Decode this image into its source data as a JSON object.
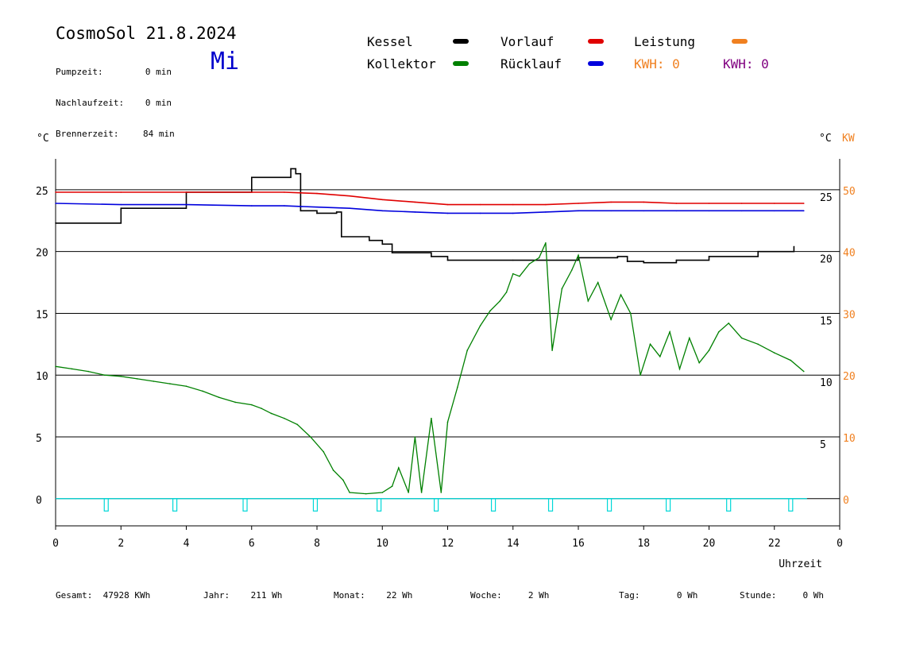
{
  "header": {
    "title": "CosmoSol 21.8.2024",
    "day": "Mi",
    "info": [
      {
        "label": "Pumpzeit:",
        "value": "0 min"
      },
      {
        "label": "Nachlaufzeit:",
        "value": "0 min"
      },
      {
        "label": "Brennerzeit:",
        "value": "84 min"
      }
    ]
  },
  "legend": {
    "kessel": {
      "label": "Kessel",
      "color": "#000000"
    },
    "kollektor": {
      "label": "Kollektor",
      "color": "#008000"
    },
    "vorlauf": {
      "label": "Vorlauf",
      "color": "#e00000"
    },
    "ruecklauf": {
      "label": "Rücklauf",
      "color": "#0000dd"
    },
    "leistung": {
      "label": "Leistung",
      "color": "#f08020"
    },
    "kwh_orange": "KWH: 0",
    "kwh_purple": "KWH: 0",
    "kwh_orange_color": "#f08020",
    "kwh_purple_color": "#800080"
  },
  "footer": [
    {
      "label": "Gesamt:",
      "value": "47928 KWh"
    },
    {
      "label": "Jahr:",
      "value": "211 Wh"
    },
    {
      "label": "Monat:",
      "value": "22 Wh"
    },
    {
      "label": "Woche:",
      "value": "2 Wh"
    },
    {
      "label": "Tag:",
      "value": "0 Wh"
    },
    {
      "label": "Stunde:",
      "value": "0 Wh"
    }
  ],
  "chart_data": {
    "type": "line",
    "xlabel": "Uhrzeit",
    "ylabel_left": "°C",
    "ylabel_right": "°C",
    "ylabel_right2": "KW",
    "xlim": [
      0,
      24
    ],
    "ylim": [
      -2.2,
      27.5
    ],
    "x_ticks": [
      "0",
      "2",
      "4",
      "6",
      "8",
      "10",
      "12",
      "14",
      "16",
      "18",
      "20",
      "22",
      "0"
    ],
    "y_ticks_left": [
      0,
      5,
      10,
      15,
      20,
      25
    ],
    "y_ticks_right": [
      "5",
      "10",
      "15",
      "20",
      "25"
    ],
    "y_ticks_right_kw": [
      "0",
      "10",
      "20",
      "30",
      "40",
      "50"
    ],
    "grid_y": [
      0,
      5,
      10,
      15,
      20,
      25
    ],
    "series": [
      {
        "name": "Kessel",
        "color": "#000000",
        "x": [
          0,
          2,
          4,
          6,
          7.2,
          7.35,
          7.5,
          8.0,
          8.6,
          8.75,
          9.6,
          10.0,
          10.3,
          11.5,
          12.0,
          14.0,
          16.0,
          17.2,
          17.5,
          18.0,
          19.0,
          20.0,
          21.5,
          22.6
        ],
        "y": [
          22.3,
          23.5,
          24.8,
          26.0,
          26.7,
          26.3,
          23.3,
          23.1,
          23.2,
          21.2,
          20.9,
          20.6,
          19.9,
          19.6,
          19.3,
          19.3,
          19.5,
          19.6,
          19.2,
          19.1,
          19.3,
          19.6,
          20.0,
          20.4
        ]
      },
      {
        "name": "Vorlauf",
        "color": "#e00000",
        "x": [
          0,
          2,
          4,
          6,
          7,
          8,
          9,
          10,
          11,
          12,
          13,
          14,
          15,
          16,
          17,
          18,
          19,
          20,
          21,
          22,
          22.9
        ],
        "y": [
          24.8,
          24.8,
          24.8,
          24.8,
          24.8,
          24.7,
          24.5,
          24.2,
          24.0,
          23.8,
          23.8,
          23.8,
          23.8,
          23.9,
          24.0,
          24.0,
          23.9,
          23.9,
          23.9,
          23.9,
          23.9
        ]
      },
      {
        "name": "Rücklauf",
        "color": "#0000dd",
        "x": [
          0,
          2,
          4,
          6,
          7,
          8,
          9,
          10,
          11,
          12,
          13,
          14,
          15,
          16,
          17,
          18,
          19,
          20,
          21,
          22,
          22.9
        ],
        "y": [
          23.9,
          23.8,
          23.8,
          23.7,
          23.7,
          23.6,
          23.5,
          23.3,
          23.2,
          23.1,
          23.1,
          23.1,
          23.2,
          23.3,
          23.3,
          23.3,
          23.3,
          23.3,
          23.3,
          23.3,
          23.3
        ]
      },
      {
        "name": "Kollektor",
        "color": "#008000",
        "x": [
          0,
          0.5,
          1,
          1.5,
          2,
          2.5,
          3,
          3.5,
          4,
          4.5,
          5,
          5.5,
          6,
          6.3,
          6.6,
          7.0,
          7.4,
          7.8,
          8.2,
          8.5,
          8.8,
          9.0,
          9.5,
          10.0,
          10.3,
          10.5,
          10.8,
          11.0,
          11.2,
          11.5,
          11.8,
          12.0,
          12.3,
          12.6,
          13.0,
          13.3,
          13.6,
          13.8,
          14.0,
          14.2,
          14.5,
          14.8,
          15.0,
          15.2,
          15.5,
          15.8,
          16.0,
          16.3,
          16.6,
          17.0,
          17.3,
          17.6,
          17.9,
          18.2,
          18.5,
          18.8,
          19.1,
          19.4,
          19.7,
          20.0,
          20.3,
          20.6,
          21.0,
          21.5,
          22.0,
          22.5,
          22.9
        ],
        "y": [
          10.7,
          10.5,
          10.3,
          10.0,
          9.9,
          9.7,
          9.5,
          9.3,
          9.1,
          8.7,
          8.2,
          7.8,
          7.6,
          7.3,
          6.9,
          6.5,
          6.0,
          5.0,
          3.8,
          2.3,
          1.5,
          0.5,
          0.4,
          0.5,
          1.0,
          2.5,
          0.5,
          5.0,
          0.5,
          6.5,
          0.5,
          6.2,
          9.0,
          12.0,
          14.0,
          15.2,
          16.0,
          16.7,
          18.2,
          18.0,
          19.0,
          19.5,
          20.7,
          12.0,
          17.0,
          18.5,
          19.7,
          16.0,
          17.5,
          14.5,
          16.5,
          15.0,
          10.0,
          12.5,
          11.5,
          13.5,
          10.5,
          13.0,
          11.0,
          12.0,
          13.5,
          14.2,
          13.0,
          12.5,
          11.8,
          11.2,
          10.3
        ]
      },
      {
        "name": "Leistung",
        "color": "#00d8d8",
        "x": [
          1.55,
          3.65,
          5.8,
          7.95,
          9.9,
          11.65,
          13.4,
          15.15,
          16.95,
          18.75,
          20.6,
          22.5
        ],
        "y": [
          -1,
          -1,
          -1,
          -1,
          -1,
          -1,
          -1,
          -1,
          -1,
          -1,
          -1,
          -1
        ]
      }
    ]
  }
}
